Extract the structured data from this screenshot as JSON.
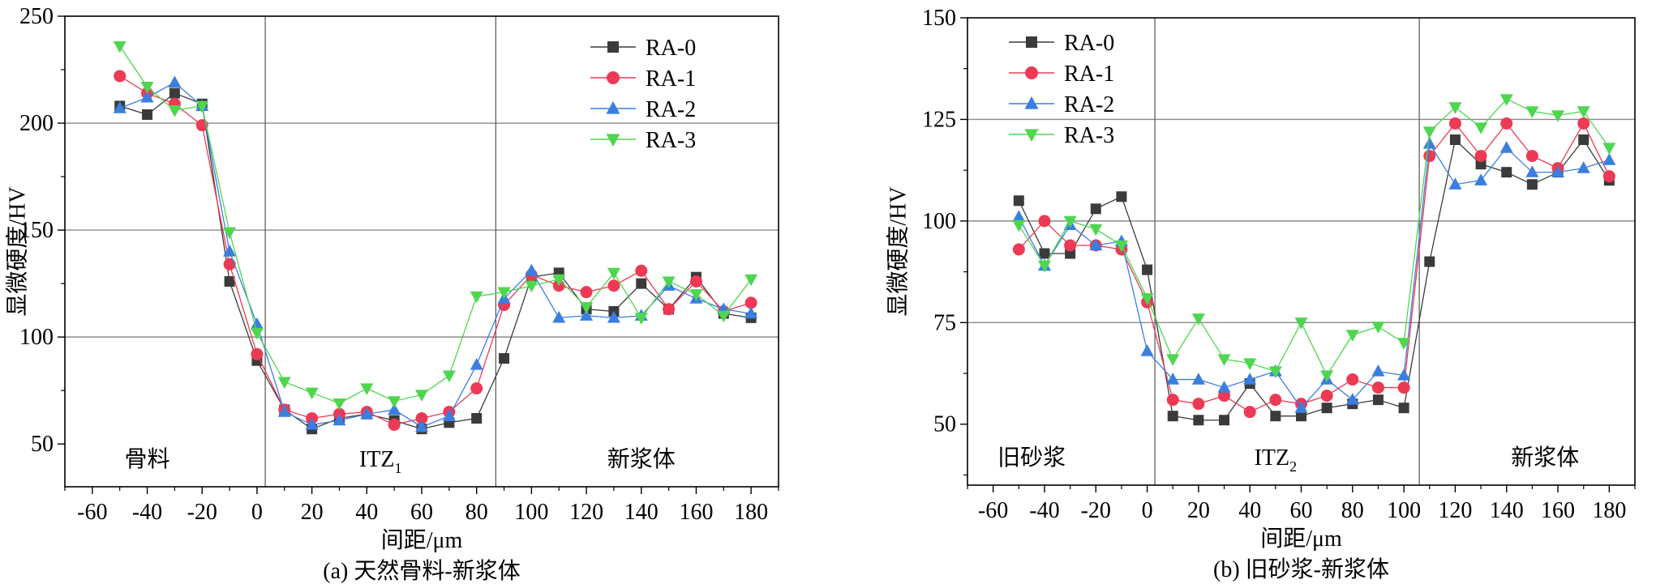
{
  "chart_data": [
    {
      "type": "line",
      "title": "(a) 天然骨料-新浆体",
      "xlabel": "间距/μm",
      "ylabel": "显微硬度/HV",
      "xlim": [
        -70,
        190
      ],
      "ylim": [
        30,
        250
      ],
      "xticks": [
        -60,
        -40,
        -20,
        0,
        20,
        40,
        60,
        80,
        100,
        120,
        140,
        160,
        180
      ],
      "yticks": [
        50,
        100,
        150,
        200,
        250
      ],
      "grid_y": [
        100,
        150,
        200
      ],
      "dividers": [
        3,
        87
      ],
      "regions": [
        {
          "label": "骨料",
          "x": -40
        },
        {
          "label": "ITZ",
          "sub": "1",
          "x": 45
        },
        {
          "label": "新浆体",
          "x": 140
        }
      ],
      "legend_position": "top-right",
      "x": [
        -50,
        -40,
        -30,
        -20,
        -10,
        0,
        10,
        20,
        30,
        40,
        50,
        60,
        70,
        80,
        90,
        100,
        110,
        120,
        130,
        140,
        150,
        160,
        170,
        180
      ],
      "series": [
        {
          "name": "RA-0",
          "color": "#3b3b3b",
          "marker": "square",
          "values": [
            208,
            204,
            214,
            209,
            126,
            89,
            66,
            57,
            62,
            64,
            61,
            57,
            60,
            62,
            90,
            128,
            130,
            113,
            112,
            125,
            113,
            128,
            111,
            109
          ]
        },
        {
          "name": "RA-1",
          "color": "#ec3a55",
          "marker": "circle",
          "values": [
            222,
            214,
            209,
            199,
            134,
            92,
            66,
            62,
            64,
            65,
            59,
            62,
            65,
            76,
            115,
            129,
            124,
            121,
            124,
            131,
            113,
            126,
            112,
            116
          ]
        },
        {
          "name": "RA-2",
          "color": "#3a7ee0",
          "marker": "triangle-up",
          "values": [
            207,
            212,
            219,
            208,
            140,
            106,
            65,
            59,
            61,
            64,
            66,
            58,
            63,
            87,
            118,
            131,
            109,
            110,
            109,
            110,
            124,
            118,
            113,
            111
          ]
        },
        {
          "name": "RA-3",
          "color": "#4fd64f",
          "marker": "triangle-down",
          "values": [
            236,
            217,
            206,
            208,
            149,
            102,
            79,
            74,
            69,
            76,
            70,
            73,
            82,
            119,
            121,
            124,
            127,
            114,
            130,
            109,
            126,
            120,
            110,
            127
          ]
        }
      ]
    },
    {
      "type": "line",
      "title": "(b) 旧砂浆-新浆体",
      "xlabel": "间距/μm",
      "ylabel": "显微硬度/HV",
      "xlim": [
        -70,
        190
      ],
      "ylim": [
        35,
        150
      ],
      "xticks": [
        -60,
        -40,
        -20,
        0,
        20,
        40,
        60,
        80,
        100,
        120,
        140,
        160,
        180
      ],
      "yticks": [
        50,
        75,
        100,
        125,
        150
      ],
      "grid_y": [
        75,
        100,
        125
      ],
      "dividers": [
        3,
        106
      ],
      "regions": [
        {
          "label": "旧砂浆",
          "x": -45
        },
        {
          "label": "ITZ",
          "sub": "2",
          "x": 50
        },
        {
          "label": "新浆体",
          "x": 155
        }
      ],
      "legend_position": "top-left",
      "x": [
        -50,
        -40,
        -30,
        -20,
        -10,
        0,
        10,
        20,
        30,
        40,
        50,
        60,
        70,
        80,
        90,
        100,
        110,
        120,
        130,
        140,
        150,
        160,
        170,
        180
      ],
      "series": [
        {
          "name": "RA-0",
          "color": "#3b3b3b",
          "marker": "square",
          "values": [
            105,
            92,
            92,
            103,
            106,
            88,
            52,
            51,
            51,
            60,
            52,
            52,
            54,
            55,
            56,
            54,
            90,
            120,
            114,
            112,
            109,
            112,
            120,
            110
          ]
        },
        {
          "name": "RA-1",
          "color": "#ec3a55",
          "marker": "circle",
          "values": [
            93,
            100,
            94,
            94,
            93,
            80,
            56,
            55,
            57,
            53,
            56,
            55,
            57,
            61,
            59,
            59,
            116,
            124,
            116,
            124,
            116,
            113,
            124,
            111
          ]
        },
        {
          "name": "RA-2",
          "color": "#3a7ee0",
          "marker": "triangle-up",
          "values": [
            101,
            89,
            99,
            94,
            95,
            68,
            61,
            61,
            59,
            61,
            63,
            54,
            61,
            56,
            63,
            62,
            119,
            109,
            110,
            118,
            112,
            112,
            113,
            115
          ]
        },
        {
          "name": "RA-3",
          "color": "#4fd64f",
          "marker": "triangle-down",
          "values": [
            99,
            89,
            100,
            98,
            94,
            81,
            66,
            76,
            66,
            65,
            63,
            75,
            62,
            72,
            74,
            70,
            122,
            128,
            123,
            130,
            127,
            126,
            127,
            118
          ]
        }
      ]
    }
  ]
}
